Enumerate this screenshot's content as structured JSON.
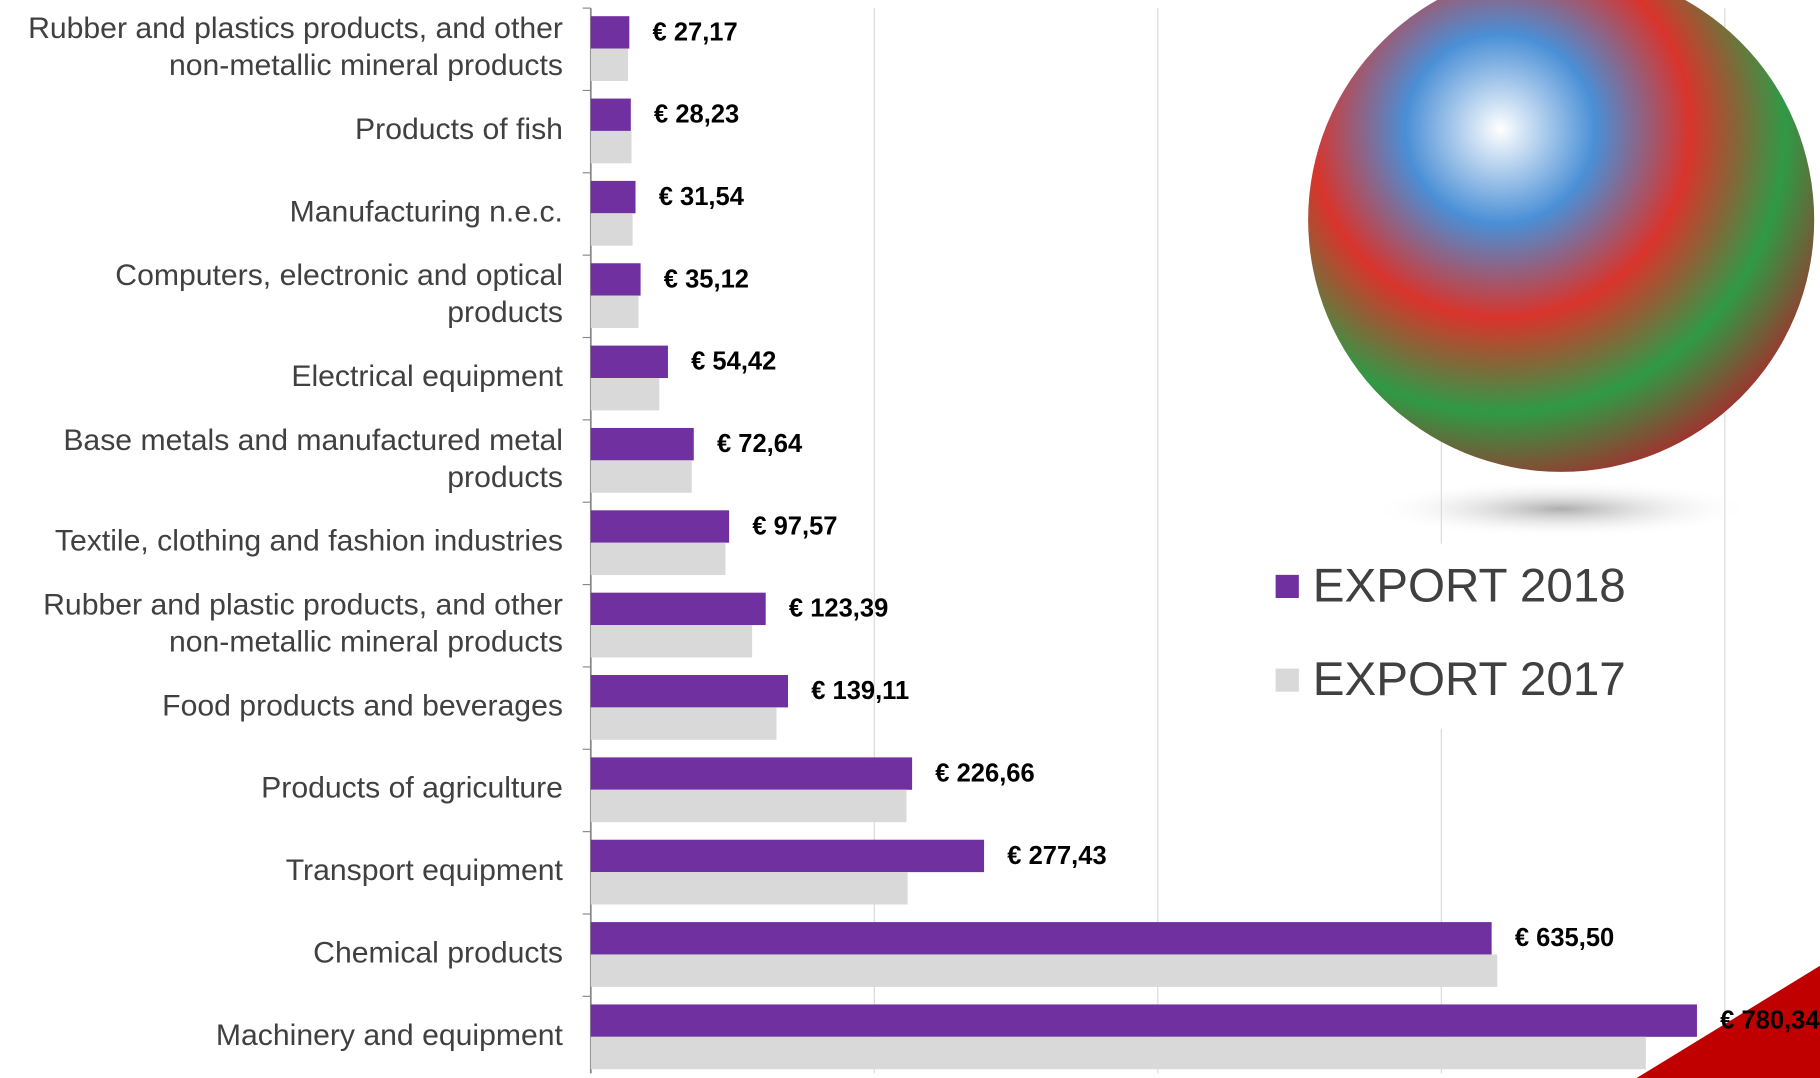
{
  "chart_data": {
    "type": "hbar",
    "categories": [
      "Rubber and plastics products, and other non-metallic mineral products",
      "Products of fish",
      "Manufacturing n.e.c.",
      "Computers, electronic and optical products",
      "Electrical equipment",
      "Base metals and manufactured metal products",
      "Textile, clothing and fashion industries",
      "Rubber and plastic products, and other non-metallic mineral products",
      "Food products and beverages",
      "Products of agriculture",
      "Transport equipment",
      "Chemical products",
      "Machinery and equipment"
    ],
    "series": [
      {
        "name": "EXPORT 2018",
        "color": "#7030a0",
        "values": [
          27.17,
          28.23,
          31.54,
          35.12,
          54.42,
          72.64,
          97.57,
          123.39,
          139.11,
          226.66,
          277.43,
          635.5,
          780.34
        ],
        "value_labels": [
          "€ 27,17",
          "€ 28,23",
          "€ 31,54",
          "€ 35,12",
          "€ 54,42",
          "€ 72,64",
          "€ 97,57",
          "€ 123,39",
          "€ 139,11",
          "€ 226,66",
          "€ 277,43",
          "€ 635,50",
          "€ 780,34"
        ]
      },
      {
        "name": "EXPORT 2017",
        "color": "#d9d9d9",
        "values": [
          26.2,
          28.7,
          29.5,
          33.6,
          48.3,
          71.2,
          95,
          113.8,
          131,
          222.7,
          223.5,
          639.5,
          744.3
        ]
      }
    ],
    "xlim": [
      0,
      800
    ],
    "xticks": [
      0,
      200,
      400,
      600,
      800
    ],
    "grid": true
  }
}
